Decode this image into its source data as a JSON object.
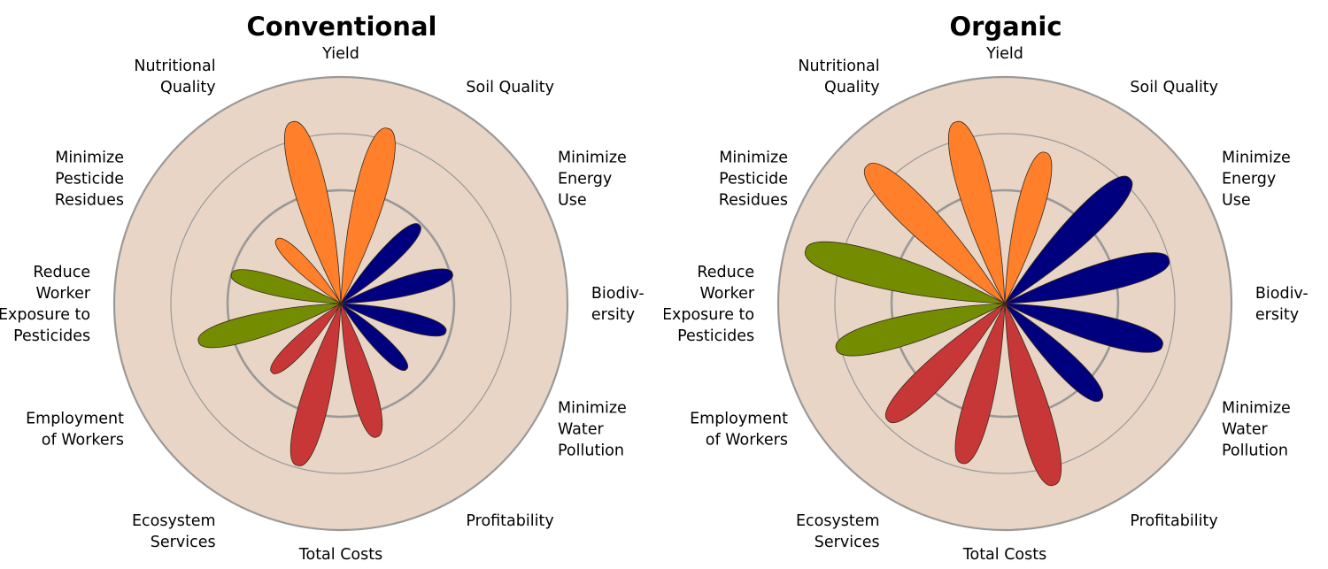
{
  "colors": {
    "background_disc": "#e8d5c5",
    "disc_border": "#999999",
    "grid_ring": "#999999",
    "environment": "#00007f",
    "production": "#ff7f2a",
    "social": "#748c00",
    "economic": "#c83737"
  },
  "chart_data": [
    {
      "type": "polar-petal",
      "title": "Conventional",
      "grid": true,
      "radial_range": [
        0,
        1
      ],
      "categories": [
        {
          "label": "Yield",
          "group": "production",
          "value": 0.8
        },
        {
          "label": "Soil Quality",
          "group": "environment",
          "value": 0.49
        },
        {
          "label": "Minimize Energy Use",
          "group": "environment",
          "value": 0.51
        },
        {
          "label": "Biodiversity",
          "group": "environment",
          "value": 0.48
        },
        {
          "label": "Minimize Water Pollution",
          "group": "environment",
          "value": 0.41
        },
        {
          "label": "Profitability",
          "group": "economic",
          "value": 0.61
        },
        {
          "label": "Total Costs",
          "group": "economic",
          "value": 0.74
        },
        {
          "label": "Ecosystem Services",
          "group": "economic",
          "value": 0.43
        },
        {
          "label": "Employment of Workers",
          "group": "social",
          "value": 0.65
        },
        {
          "label": "Reduce Worker Exposure to Pesticides",
          "group": "social",
          "value": 0.5
        },
        {
          "label": "Minimize Pesticide Residues",
          "group": "production",
          "value": 0.4
        },
        {
          "label": "Nutritional Quality",
          "group": "production",
          "value": 0.83
        }
      ]
    },
    {
      "type": "polar-petal",
      "title": "Organic",
      "grid": true,
      "radial_range": [
        0,
        1
      ],
      "categories": [
        {
          "label": "Yield",
          "group": "production",
          "value": 0.69
        },
        {
          "label": "Soil Quality",
          "group": "environment",
          "value": 0.78
        },
        {
          "label": "Minimize Energy Use",
          "group": "environment",
          "value": 0.75
        },
        {
          "label": "Biodiversity",
          "group": "environment",
          "value": 0.72
        },
        {
          "label": "Minimize Water Pollution",
          "group": "environment",
          "value": 0.6
        },
        {
          "label": "Profitability",
          "group": "economic",
          "value": 0.83
        },
        {
          "label": "Total Costs",
          "group": "economic",
          "value": 0.73
        },
        {
          "label": "Ecosystem Services",
          "group": "economic",
          "value": 0.73
        },
        {
          "label": "Employment of Workers",
          "group": "social",
          "value": 0.77
        },
        {
          "label": "Reduce Worker Exposure to Pesticides",
          "group": "social",
          "value": 0.91
        },
        {
          "label": "Minimize Pesticide Residues",
          "group": "production",
          "value": 0.86
        },
        {
          "label": "Nutritional Quality",
          "group": "production",
          "value": 0.83
        }
      ]
    }
  ],
  "label_lines": [
    [
      "Yield"
    ],
    [
      "Soil Quality"
    ],
    [
      "Minimize",
      "Energy",
      "Use"
    ],
    [
      "Biodiv-",
      "ersity"
    ],
    [
      "Minimize",
      "Water",
      "Pollution"
    ],
    [
      "Profitability"
    ],
    [
      "Total Costs"
    ],
    [
      "Ecosystem",
      "Services"
    ],
    [
      "Employment",
      "of Workers"
    ],
    [
      "Reduce",
      "Worker",
      "Exposure to",
      "Pesticides"
    ],
    [
      "Minimize",
      "Pesticide",
      "Residues"
    ],
    [
      "Nutritional",
      "Quality"
    ]
  ]
}
